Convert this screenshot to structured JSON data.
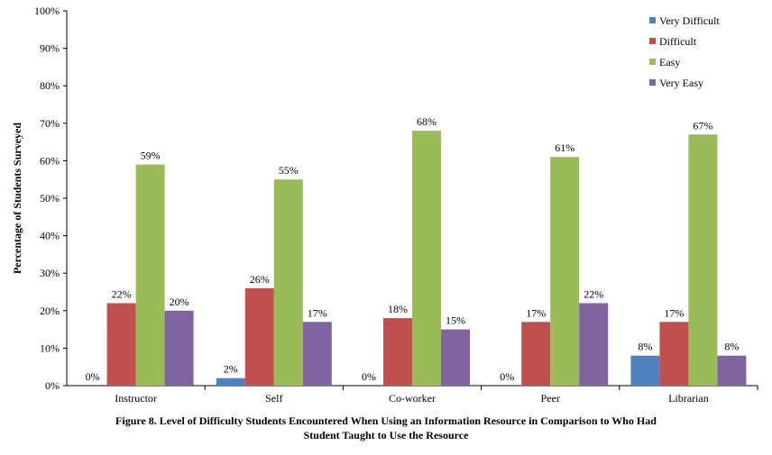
{
  "chart_data": {
    "type": "bar",
    "title": "",
    "xlabel": "",
    "ylabel": "Percentage of Students Surveyed",
    "categories": [
      "Instructor",
      "Self",
      "Co-worker",
      "Peer",
      "Librarian"
    ],
    "series": [
      {
        "name": "Very Difficult",
        "color": "#4F81BD",
        "values": [
          0,
          2,
          0,
          0,
          8
        ],
        "labels": [
          "0%",
          "2%",
          "0%",
          "0%",
          "8%"
        ]
      },
      {
        "name": "Difficult",
        "color": "#C0504D",
        "values": [
          22,
          26,
          18,
          17,
          17
        ],
        "labels": [
          "22%",
          "26%",
          "18%",
          "17%",
          "17%"
        ]
      },
      {
        "name": "Easy",
        "color": "#9BBB59",
        "values": [
          59,
          55,
          68,
          61,
          67
        ],
        "labels": [
          "59%",
          "55%",
          "68%",
          "61%",
          "67%"
        ]
      },
      {
        "name": "Very Easy",
        "color": "#8064A2",
        "values": [
          20,
          17,
          15,
          22,
          8
        ],
        "labels": [
          "20%",
          "17%",
          "15%",
          "22%",
          "8%"
        ]
      }
    ],
    "ylim": [
      0,
      100
    ],
    "yticks": [
      0,
      10,
      20,
      30,
      40,
      50,
      60,
      70,
      80,
      90,
      100
    ],
    "ytick_labels": [
      "0%",
      "10%",
      "20%",
      "30%",
      "40%",
      "50%",
      "60%",
      "70%",
      "80%",
      "90%",
      "100%"
    ],
    "grid": false,
    "legend_position": "top-right"
  },
  "caption": {
    "line1": "Figure 8. Level of Difficulty Students  Encountered When Using an Information Resource in Comparison to Who Had",
    "line2": "Student  Taught to Use the Resource"
  }
}
